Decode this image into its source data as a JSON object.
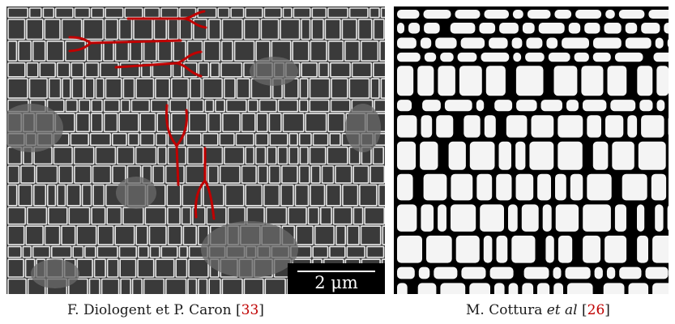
{
  "figure": {
    "left": {
      "scale_bar_label": "2 μm",
      "caption_prefix": "F. Diologent et P. Caron [",
      "caption_ref": "33",
      "caption_suffix": "]"
    },
    "right": {
      "caption_name": "M. Cottura ",
      "caption_italic": "et al",
      "caption_space": " [",
      "caption_ref": "26",
      "caption_suffix": "]"
    }
  },
  "colors": {
    "annotation_red": "#c00000",
    "reference_red": "#c00000",
    "channel_white": "#e8e8e8",
    "precipitate_gray": "#3a3a3a"
  }
}
